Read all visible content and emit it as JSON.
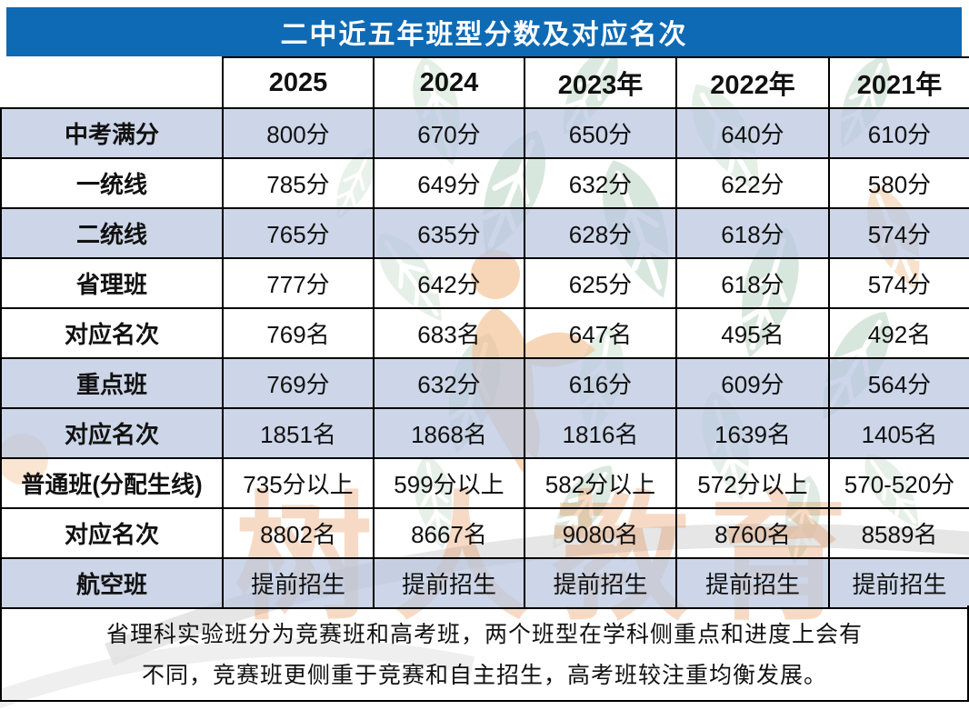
{
  "title": "二中近五年班型分数及对应名次",
  "watermark": {
    "text": "树人教育"
  },
  "footnote": {
    "line1": "省理科实验班分为竞赛班和高考班，两个班型在学科侧重点和进度上会有",
    "line2": "不同，竞赛班更侧重于竞赛和自主招生，高考班较注重均衡发展。"
  },
  "colors": {
    "title_bar_blue": "#0e6ab4",
    "shaded_row_blue": "#ccd6e8",
    "grid_border": "#000000",
    "watermark_orange": "#e58640",
    "leaf_green": "#b9d4c2",
    "figure_peach": "#f3c193",
    "swoosh_gray": "#dcdcdc"
  },
  "chart_data": {
    "type": "table",
    "title": "二中近五年班型分数及对应名次",
    "columns": [
      "",
      "2025",
      "2024",
      "2023年",
      "2022年",
      "2021年"
    ],
    "rows": [
      {
        "label": "中考满分",
        "values": [
          "800分",
          "670分",
          "650分",
          "640分",
          "610分"
        ],
        "shaded": true
      },
      {
        "label": "一统线",
        "values": [
          "785分",
          "649分",
          "632分",
          "622分",
          "580分"
        ],
        "shaded": false
      },
      {
        "label": "二统线",
        "values": [
          "765分",
          "635分",
          "628分",
          "618分",
          "574分"
        ],
        "shaded": true
      },
      {
        "label": "省理班",
        "values": [
          "777分",
          "642分",
          "625分",
          "618分",
          "574分"
        ],
        "shaded": false
      },
      {
        "label": "对应名次",
        "values": [
          "769名",
          "683名",
          "647名",
          "495名",
          "492名"
        ],
        "shaded": false
      },
      {
        "label": "重点班",
        "values": [
          "769分",
          "632分",
          "616分",
          "609分",
          "564分"
        ],
        "shaded": true
      },
      {
        "label": "对应名次",
        "values": [
          "1851名",
          "1868名",
          "1816名",
          "1639名",
          "1405名"
        ],
        "shaded": true
      },
      {
        "label": "普通班(分配生线)",
        "values": [
          "735分以上",
          "599分以上",
          "582分以上",
          "572分以上",
          "570-520分"
        ],
        "shaded": false
      },
      {
        "label": "对应名次",
        "values": [
          "8802名",
          "8667名",
          "9080名",
          "8760名",
          "8589名"
        ],
        "shaded": false
      },
      {
        "label": "航空班",
        "values": [
          "提前招生",
          "提前招生",
          "提前招生",
          "提前招生",
          "提前招生"
        ],
        "shaded": true
      }
    ]
  }
}
